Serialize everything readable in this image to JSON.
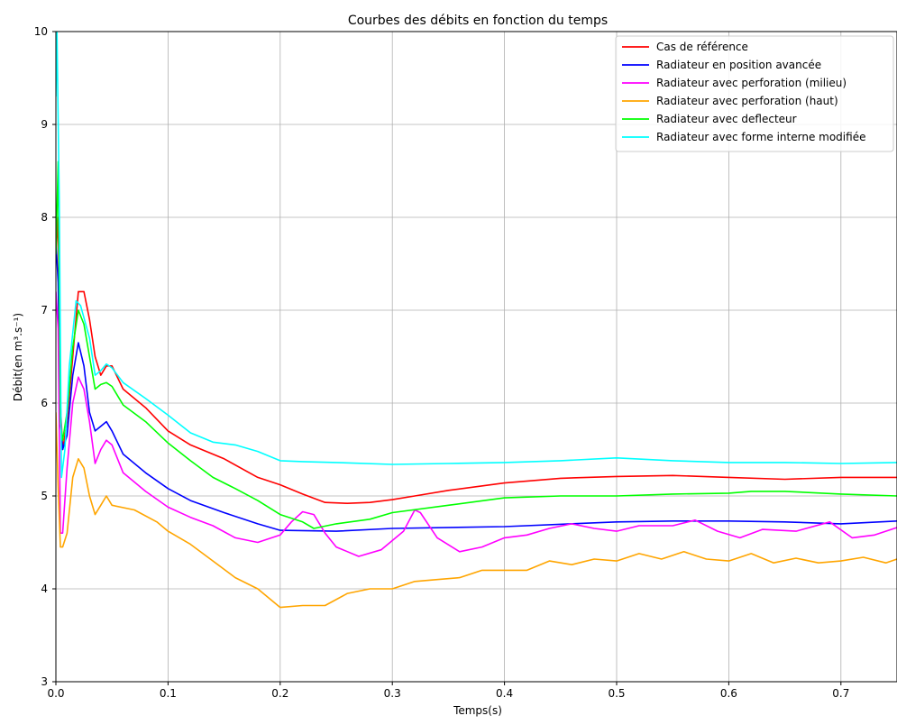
{
  "chart_data": {
    "type": "line",
    "title": "Courbes des débits en fonction du temps",
    "xlabel": "Temps(s)",
    "ylabel": "Débit(en m³.s⁻¹)",
    "xlim": [
      0,
      0.75
    ],
    "ylim": [
      3,
      10
    ],
    "xticks": [
      0.0,
      0.1,
      0.2,
      0.3,
      0.4,
      0.5,
      0.6,
      0.7
    ],
    "xtick_labels": [
      "0.0",
      "0.1",
      "0.2",
      "0.3",
      "0.4",
      "0.5",
      "0.6",
      "0.7"
    ],
    "yticks": [
      3,
      4,
      5,
      6,
      7,
      8,
      9,
      10
    ],
    "ytick_labels": [
      "3",
      "4",
      "5",
      "6",
      "7",
      "8",
      "9",
      "10"
    ],
    "grid": true,
    "legend_position": "top-right",
    "series": [
      {
        "name": "Cas de référence",
        "color": "#ff0000",
        "points": [
          [
            0.0,
            7.6
          ],
          [
            0.002,
            8.0
          ],
          [
            0.004,
            6.0
          ],
          [
            0.006,
            5.5
          ],
          [
            0.01,
            5.8
          ],
          [
            0.015,
            6.5
          ],
          [
            0.02,
            7.2
          ],
          [
            0.025,
            7.2
          ],
          [
            0.03,
            6.9
          ],
          [
            0.035,
            6.5
          ],
          [
            0.04,
            6.3
          ],
          [
            0.045,
            6.4
          ],
          [
            0.05,
            6.4
          ],
          [
            0.06,
            6.15
          ],
          [
            0.07,
            6.05
          ],
          [
            0.08,
            5.95
          ],
          [
            0.1,
            5.7
          ],
          [
            0.12,
            5.55
          ],
          [
            0.15,
            5.4
          ],
          [
            0.18,
            5.2
          ],
          [
            0.2,
            5.12
          ],
          [
            0.22,
            5.02
          ],
          [
            0.24,
            4.93
          ],
          [
            0.26,
            4.92
          ],
          [
            0.28,
            4.93
          ],
          [
            0.3,
            4.96
          ],
          [
            0.32,
            5.0
          ],
          [
            0.35,
            5.06
          ],
          [
            0.4,
            5.14
          ],
          [
            0.45,
            5.19
          ],
          [
            0.5,
            5.21
          ],
          [
            0.55,
            5.22
          ],
          [
            0.6,
            5.2
          ],
          [
            0.65,
            5.18
          ],
          [
            0.7,
            5.2
          ],
          [
            0.75,
            5.2
          ]
        ]
      },
      {
        "name": "Radiateur en position avancée",
        "color": "#0000ff",
        "points": [
          [
            0.0,
            7.75
          ],
          [
            0.002,
            7.3
          ],
          [
            0.004,
            5.8
          ],
          [
            0.006,
            5.5
          ],
          [
            0.01,
            5.65
          ],
          [
            0.015,
            6.3
          ],
          [
            0.02,
            6.65
          ],
          [
            0.025,
            6.4
          ],
          [
            0.03,
            5.9
          ],
          [
            0.035,
            5.7
          ],
          [
            0.04,
            5.75
          ],
          [
            0.045,
            5.8
          ],
          [
            0.05,
            5.7
          ],
          [
            0.06,
            5.45
          ],
          [
            0.08,
            5.25
          ],
          [
            0.1,
            5.08
          ],
          [
            0.12,
            4.95
          ],
          [
            0.15,
            4.82
          ],
          [
            0.18,
            4.7
          ],
          [
            0.2,
            4.63
          ],
          [
            0.25,
            4.62
          ],
          [
            0.3,
            4.65
          ],
          [
            0.4,
            4.67
          ],
          [
            0.5,
            4.72
          ],
          [
            0.55,
            4.73
          ],
          [
            0.6,
            4.73
          ],
          [
            0.65,
            4.72
          ],
          [
            0.7,
            4.7
          ],
          [
            0.75,
            4.73
          ]
        ]
      },
      {
        "name": "Radiateur avec perforation (milieu)",
        "color": "#ff00ff",
        "points": [
          [
            0.0,
            7.2
          ],
          [
            0.002,
            6.8
          ],
          [
            0.004,
            4.6
          ],
          [
            0.006,
            4.6
          ],
          [
            0.01,
            5.3
          ],
          [
            0.015,
            6.0
          ],
          [
            0.02,
            6.28
          ],
          [
            0.025,
            6.15
          ],
          [
            0.03,
            5.8
          ],
          [
            0.035,
            5.35
          ],
          [
            0.04,
            5.5
          ],
          [
            0.045,
            5.6
          ],
          [
            0.05,
            5.55
          ],
          [
            0.06,
            5.25
          ],
          [
            0.08,
            5.05
          ],
          [
            0.1,
            4.88
          ],
          [
            0.12,
            4.77
          ],
          [
            0.14,
            4.68
          ],
          [
            0.16,
            4.55
          ],
          [
            0.18,
            4.5
          ],
          [
            0.2,
            4.58
          ],
          [
            0.21,
            4.72
          ],
          [
            0.22,
            4.83
          ],
          [
            0.23,
            4.8
          ],
          [
            0.24,
            4.6
          ],
          [
            0.25,
            4.45
          ],
          [
            0.27,
            4.35
          ],
          [
            0.29,
            4.42
          ],
          [
            0.31,
            4.62
          ],
          [
            0.32,
            4.85
          ],
          [
            0.325,
            4.82
          ],
          [
            0.34,
            4.55
          ],
          [
            0.36,
            4.4
          ],
          [
            0.38,
            4.45
          ],
          [
            0.4,
            4.55
          ],
          [
            0.42,
            4.58
          ],
          [
            0.44,
            4.65
          ],
          [
            0.46,
            4.7
          ],
          [
            0.48,
            4.65
          ],
          [
            0.5,
            4.62
          ],
          [
            0.52,
            4.68
          ],
          [
            0.55,
            4.68
          ],
          [
            0.57,
            4.74
          ],
          [
            0.59,
            4.62
          ],
          [
            0.61,
            4.55
          ],
          [
            0.63,
            4.64
          ],
          [
            0.66,
            4.62
          ],
          [
            0.69,
            4.72
          ],
          [
            0.71,
            4.55
          ],
          [
            0.73,
            4.58
          ],
          [
            0.75,
            4.66
          ]
        ]
      },
      {
        "name": "Radiateur avec perforation (haut)",
        "color": "#ffa500",
        "points": [
          [
            0.0,
            5.9
          ],
          [
            0.002,
            5.1
          ],
          [
            0.004,
            4.45
          ],
          [
            0.006,
            4.45
          ],
          [
            0.01,
            4.6
          ],
          [
            0.015,
            5.2
          ],
          [
            0.02,
            5.4
          ],
          [
            0.025,
            5.3
          ],
          [
            0.03,
            5.0
          ],
          [
            0.035,
            4.8
          ],
          [
            0.04,
            4.9
          ],
          [
            0.045,
            5.0
          ],
          [
            0.05,
            4.9
          ],
          [
            0.07,
            4.85
          ],
          [
            0.09,
            4.72
          ],
          [
            0.1,
            4.62
          ],
          [
            0.12,
            4.48
          ],
          [
            0.14,
            4.3
          ],
          [
            0.16,
            4.12
          ],
          [
            0.18,
            4.0
          ],
          [
            0.2,
            3.8
          ],
          [
            0.22,
            3.82
          ],
          [
            0.24,
            3.82
          ],
          [
            0.26,
            3.95
          ],
          [
            0.28,
            4.0
          ],
          [
            0.3,
            4.0
          ],
          [
            0.32,
            4.08
          ],
          [
            0.34,
            4.1
          ],
          [
            0.36,
            4.12
          ],
          [
            0.38,
            4.2
          ],
          [
            0.4,
            4.2
          ],
          [
            0.42,
            4.2
          ],
          [
            0.44,
            4.3
          ],
          [
            0.46,
            4.26
          ],
          [
            0.48,
            4.32
          ],
          [
            0.5,
            4.3
          ],
          [
            0.52,
            4.38
          ],
          [
            0.54,
            4.32
          ],
          [
            0.56,
            4.4
          ],
          [
            0.58,
            4.32
          ],
          [
            0.6,
            4.3
          ],
          [
            0.62,
            4.38
          ],
          [
            0.64,
            4.28
          ],
          [
            0.66,
            4.33
          ],
          [
            0.68,
            4.28
          ],
          [
            0.7,
            4.3
          ],
          [
            0.72,
            4.34
          ],
          [
            0.74,
            4.28
          ],
          [
            0.75,
            4.32
          ]
        ]
      },
      {
        "name": "Radiateur avec deflecteur",
        "color": "#00ff00",
        "points": [
          [
            0.0,
            7.6
          ],
          [
            0.002,
            8.6
          ],
          [
            0.004,
            5.8
          ],
          [
            0.006,
            5.6
          ],
          [
            0.01,
            5.9
          ],
          [
            0.015,
            6.6
          ],
          [
            0.02,
            7.0
          ],
          [
            0.025,
            6.85
          ],
          [
            0.03,
            6.5
          ],
          [
            0.035,
            6.15
          ],
          [
            0.04,
            6.2
          ],
          [
            0.045,
            6.22
          ],
          [
            0.05,
            6.18
          ],
          [
            0.06,
            5.98
          ],
          [
            0.08,
            5.8
          ],
          [
            0.1,
            5.57
          ],
          [
            0.12,
            5.38
          ],
          [
            0.14,
            5.2
          ],
          [
            0.16,
            5.08
          ],
          [
            0.18,
            4.95
          ],
          [
            0.2,
            4.8
          ],
          [
            0.22,
            4.72
          ],
          [
            0.23,
            4.65
          ],
          [
            0.25,
            4.7
          ],
          [
            0.28,
            4.75
          ],
          [
            0.3,
            4.82
          ],
          [
            0.35,
            4.9
          ],
          [
            0.4,
            4.98
          ],
          [
            0.45,
            5.0
          ],
          [
            0.5,
            5.0
          ],
          [
            0.55,
            5.02
          ],
          [
            0.6,
            5.03
          ],
          [
            0.62,
            5.05
          ],
          [
            0.65,
            5.05
          ],
          [
            0.7,
            5.02
          ],
          [
            0.75,
            5.0
          ]
        ]
      },
      {
        "name": "Radiateur avec forme interne modifiée",
        "color": "#00ffff",
        "points": [
          [
            0.0,
            9.3
          ],
          [
            0.001,
            10.0
          ],
          [
            0.003,
            8.2
          ],
          [
            0.005,
            5.2
          ],
          [
            0.008,
            5.5
          ],
          [
            0.012,
            6.4
          ],
          [
            0.018,
            7.1
          ],
          [
            0.022,
            7.05
          ],
          [
            0.03,
            6.7
          ],
          [
            0.035,
            6.3
          ],
          [
            0.04,
            6.35
          ],
          [
            0.045,
            6.42
          ],
          [
            0.05,
            6.38
          ],
          [
            0.06,
            6.22
          ],
          [
            0.08,
            6.05
          ],
          [
            0.1,
            5.87
          ],
          [
            0.12,
            5.68
          ],
          [
            0.14,
            5.58
          ],
          [
            0.16,
            5.55
          ],
          [
            0.18,
            5.48
          ],
          [
            0.2,
            5.38
          ],
          [
            0.22,
            5.37
          ],
          [
            0.25,
            5.36
          ],
          [
            0.3,
            5.34
          ],
          [
            0.35,
            5.35
          ],
          [
            0.4,
            5.36
          ],
          [
            0.45,
            5.38
          ],
          [
            0.5,
            5.41
          ],
          [
            0.55,
            5.38
          ],
          [
            0.6,
            5.36
          ],
          [
            0.65,
            5.36
          ],
          [
            0.7,
            5.35
          ],
          [
            0.75,
            5.36
          ]
        ]
      }
    ]
  }
}
